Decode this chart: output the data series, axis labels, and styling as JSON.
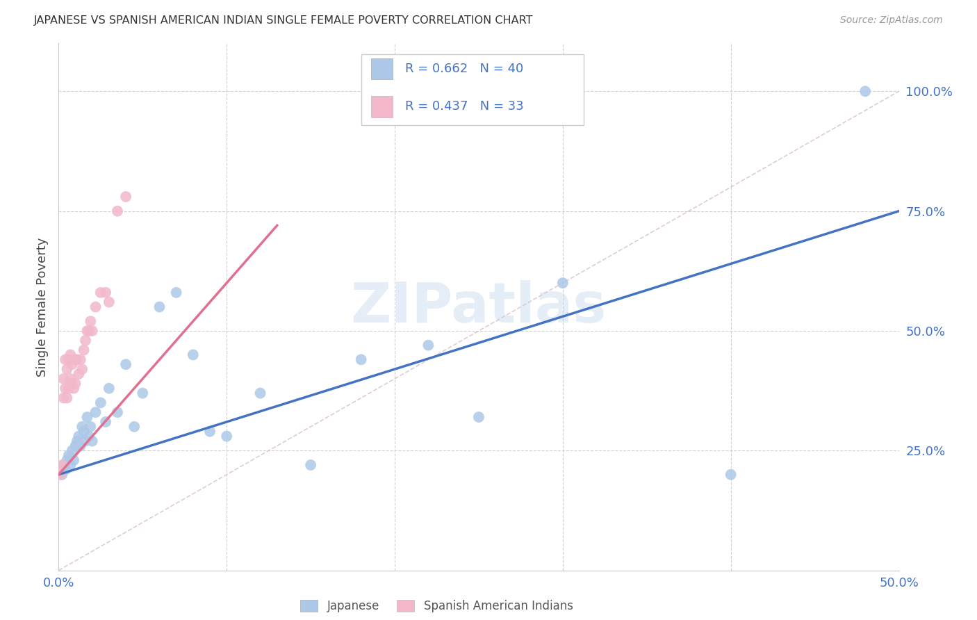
{
  "title": "JAPANESE VS SPANISH AMERICAN INDIAN SINGLE FEMALE POVERTY CORRELATION CHART",
  "source": "Source: ZipAtlas.com",
  "ylabel": "Single Female Poverty",
  "xlim": [
    0.0,
    0.5
  ],
  "ylim": [
    0.0,
    1.1
  ],
  "xticks": [
    0.0,
    0.1,
    0.2,
    0.3,
    0.4,
    0.5
  ],
  "xticklabels": [
    "0.0%",
    "",
    "",
    "",
    "",
    "50.0%"
  ],
  "yticks": [
    0.25,
    0.5,
    0.75,
    1.0
  ],
  "yticklabels": [
    "25.0%",
    "50.0%",
    "75.0%",
    "100.0%"
  ],
  "r_japanese": 0.662,
  "n_japanese": 40,
  "r_spanish": 0.437,
  "n_spanish": 33,
  "blue_color": "#adc8e8",
  "pink_color": "#f2b8ca",
  "blue_line_color": "#4472c4",
  "pink_line_color": "#e07090",
  "legend_text_color": "#4472c4",
  "watermark": "ZIPatlas",
  "background_color": "#ffffff",
  "grid_color": "#d0d0d0",
  "japanese_x": [
    0.002,
    0.003,
    0.004,
    0.005,
    0.006,
    0.007,
    0.008,
    0.009,
    0.01,
    0.011,
    0.012,
    0.013,
    0.014,
    0.015,
    0.016,
    0.017,
    0.018,
    0.019,
    0.02,
    0.022,
    0.025,
    0.028,
    0.03,
    0.035,
    0.04,
    0.045,
    0.05,
    0.06,
    0.07,
    0.08,
    0.09,
    0.1,
    0.12,
    0.15,
    0.18,
    0.22,
    0.25,
    0.3,
    0.4,
    0.48
  ],
  "japanese_y": [
    0.2,
    0.22,
    0.21,
    0.23,
    0.24,
    0.22,
    0.25,
    0.23,
    0.26,
    0.27,
    0.28,
    0.26,
    0.3,
    0.29,
    0.27,
    0.32,
    0.28,
    0.3,
    0.27,
    0.33,
    0.35,
    0.31,
    0.38,
    0.33,
    0.43,
    0.3,
    0.37,
    0.55,
    0.58,
    0.45,
    0.29,
    0.28,
    0.37,
    0.22,
    0.44,
    0.47,
    0.32,
    0.6,
    0.2,
    1.0
  ],
  "spanish_x": [
    0.001,
    0.002,
    0.003,
    0.003,
    0.004,
    0.004,
    0.005,
    0.005,
    0.006,
    0.006,
    0.007,
    0.007,
    0.008,
    0.008,
    0.009,
    0.01,
    0.01,
    0.011,
    0.012,
    0.013,
    0.014,
    0.015,
    0.016,
    0.017,
    0.018,
    0.019,
    0.02,
    0.022,
    0.025,
    0.028,
    0.03,
    0.035,
    0.04
  ],
  "spanish_y": [
    0.2,
    0.22,
    0.36,
    0.4,
    0.38,
    0.44,
    0.36,
    0.42,
    0.38,
    0.44,
    0.4,
    0.45,
    0.39,
    0.43,
    0.38,
    0.39,
    0.44,
    0.44,
    0.41,
    0.44,
    0.42,
    0.46,
    0.48,
    0.5,
    0.5,
    0.52,
    0.5,
    0.55,
    0.58,
    0.58,
    0.56,
    0.75,
    0.78
  ],
  "japanese_line_x": [
    0.0,
    0.5
  ],
  "japanese_line_y": [
    0.2,
    0.75
  ],
  "spanish_line_x": [
    0.0,
    0.13
  ],
  "spanish_line_y": [
    0.2,
    0.72
  ],
  "diag_line_x": [
    0.0,
    0.5
  ],
  "diag_line_y": [
    0.0,
    1.0
  ]
}
